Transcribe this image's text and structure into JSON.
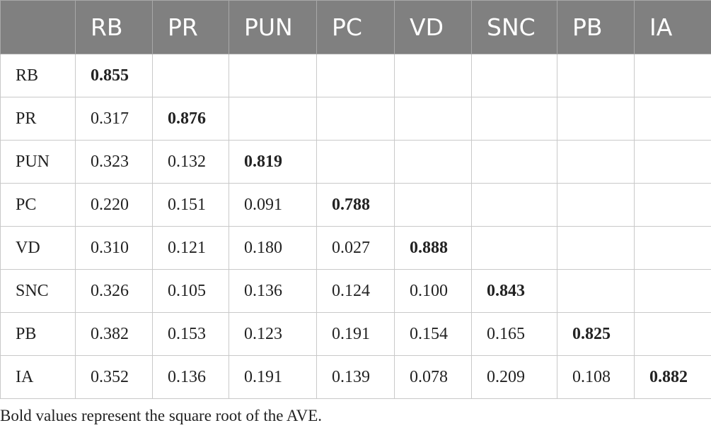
{
  "table": {
    "header": [
      "RB",
      "PR",
      "PUN",
      "PC",
      "VD",
      "SNC",
      "PB",
      "IA"
    ],
    "rows": [
      {
        "label": "RB",
        "values": [
          "0.855"
        ]
      },
      {
        "label": "PR",
        "values": [
          "0.317",
          "0.876"
        ]
      },
      {
        "label": "PUN",
        "values": [
          "0.323",
          "0.132",
          "0.819"
        ]
      },
      {
        "label": "PC",
        "values": [
          "0.220",
          "0.151",
          "0.091",
          "0.788"
        ]
      },
      {
        "label": "VD",
        "values": [
          "0.310",
          "0.121",
          "0.180",
          "0.027",
          "0.888"
        ]
      },
      {
        "label": "SNC",
        "values": [
          "0.326",
          "0.105",
          "0.136",
          "0.124",
          "0.100",
          "0.843"
        ]
      },
      {
        "label": "PB",
        "values": [
          "0.382",
          "0.153",
          "0.123",
          "0.191",
          "0.154",
          "0.165",
          "0.825"
        ]
      },
      {
        "label": "IA",
        "values": [
          "0.352",
          "0.136",
          "0.191",
          "0.139",
          "0.078",
          "0.209",
          "0.108",
          "0.882"
        ]
      }
    ],
    "footnote": "Bold values represent the square root of the AVE."
  }
}
